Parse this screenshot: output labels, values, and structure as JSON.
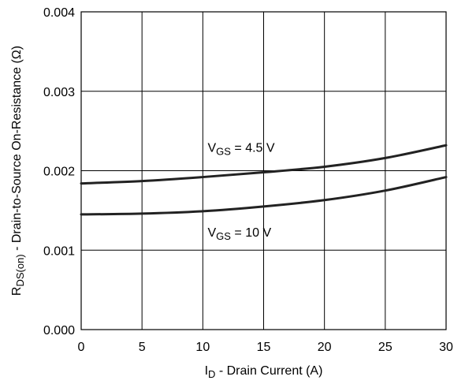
{
  "chart_data": {
    "type": "line",
    "xlabel": {
      "main": "I",
      "sub": "D",
      "rest": " -  Drain Current (A)"
    },
    "ylabel": {
      "main": "R",
      "sub": "DS(on)",
      "rest": " - Drain-to-Source On-Resistance (Ω)"
    },
    "xlim": [
      0,
      30
    ],
    "ylim": [
      0,
      0.004
    ],
    "x_ticks": [
      0,
      5,
      10,
      15,
      20,
      25,
      30
    ],
    "x_tick_labels": [
      "0",
      "5",
      "10",
      "15",
      "20",
      "25",
      "30"
    ],
    "y_ticks": [
      0,
      0.001,
      0.002,
      0.003,
      0.004
    ],
    "y_tick_labels": [
      "0.000",
      "0.001",
      "0.002",
      "0.003",
      "0.004"
    ],
    "grid": true,
    "series": [
      {
        "name": "VGS = 4.5 V",
        "label": {
          "main": "V",
          "sub": "GS",
          "rest": " = 4.5 V"
        },
        "label_at": [
          10.4,
          0.00224
        ],
        "x": [
          0,
          5,
          10,
          15,
          20,
          25,
          30
        ],
        "values": [
          0.00184,
          0.00187,
          0.00192,
          0.00198,
          0.00205,
          0.00216,
          0.00232
        ]
      },
      {
        "name": "VGS = 10 V",
        "label": {
          "main": "V",
          "sub": "GS",
          "rest": " = 10 V"
        },
        "label_at": [
          10.4,
          0.00117
        ],
        "x": [
          0,
          5,
          10,
          15,
          20,
          25,
          30
        ],
        "values": [
          0.00145,
          0.00146,
          0.00149,
          0.00155,
          0.00163,
          0.00175,
          0.00192
        ]
      }
    ]
  }
}
